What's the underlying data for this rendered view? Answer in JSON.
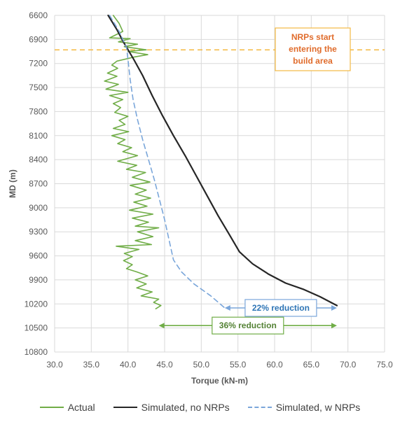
{
  "chart_data": {
    "type": "line",
    "xlabel": "Torque (kN-m)",
    "ylabel": "MD (m)",
    "xlim": [
      30.0,
      75.0
    ],
    "ylim": [
      6600,
      10800
    ],
    "y_inverted": true,
    "grid": true,
    "legend_position": "bottom",
    "x_ticks": [
      "30.0",
      "35.0",
      "40.0",
      "45.0",
      "50.0",
      "55.0",
      "60.0",
      "65.0",
      "70.0",
      "75.0"
    ],
    "y_ticks": [
      "6600",
      "6900",
      "7200",
      "7500",
      "7800",
      "8100",
      "8400",
      "8700",
      "9000",
      "9300",
      "9600",
      "9900",
      "10200",
      "10500",
      "10800"
    ],
    "series": [
      {
        "name": "Actual",
        "color": "#70ad47",
        "dash": "solid",
        "points": [
          [
            38.0,
            6600
          ],
          [
            38.8,
            6700
          ],
          [
            39.3,
            6800
          ],
          [
            37.5,
            6880
          ],
          [
            40.3,
            6890
          ],
          [
            38.7,
            6930
          ],
          [
            41.3,
            6960
          ],
          [
            39.5,
            6990
          ],
          [
            42.5,
            7030
          ],
          [
            40.0,
            7050
          ],
          [
            42.7,
            7090
          ],
          [
            40.8,
            7120
          ],
          [
            38.5,
            7170
          ],
          [
            37.8,
            7220
          ],
          [
            38.6,
            7260
          ],
          [
            37.2,
            7320
          ],
          [
            38.5,
            7360
          ],
          [
            36.8,
            7420
          ],
          [
            38.7,
            7460
          ],
          [
            37.0,
            7520
          ],
          [
            40.0,
            7560
          ],
          [
            37.5,
            7600
          ],
          [
            39.3,
            7650
          ],
          [
            38.0,
            7700
          ],
          [
            39.0,
            7750
          ],
          [
            38.2,
            7810
          ],
          [
            40.0,
            7860
          ],
          [
            38.8,
            7910
          ],
          [
            39.6,
            7960
          ],
          [
            38.0,
            8010
          ],
          [
            40.1,
            8050
          ],
          [
            37.8,
            8100
          ],
          [
            39.6,
            8150
          ],
          [
            38.6,
            8200
          ],
          [
            40.5,
            8250
          ],
          [
            39.3,
            8300
          ],
          [
            41.3,
            8350
          ],
          [
            38.6,
            8420
          ],
          [
            41.2,
            8470
          ],
          [
            39.8,
            8520
          ],
          [
            42.4,
            8560
          ],
          [
            40.6,
            8620
          ],
          [
            43.0,
            8680
          ],
          [
            40.3,
            8720
          ],
          [
            42.5,
            8780
          ],
          [
            41.0,
            8830
          ],
          [
            43.1,
            8880
          ],
          [
            40.8,
            8930
          ],
          [
            42.6,
            8980
          ],
          [
            40.2,
            9030
          ],
          [
            43.4,
            9080
          ],
          [
            40.6,
            9130
          ],
          [
            42.8,
            9180
          ],
          [
            41.0,
            9230
          ],
          [
            44.2,
            9250
          ],
          [
            41.3,
            9300
          ],
          [
            43.4,
            9360
          ],
          [
            41.0,
            9410
          ],
          [
            43.2,
            9460
          ],
          [
            38.4,
            9480
          ],
          [
            41.5,
            9520
          ],
          [
            39.5,
            9570
          ],
          [
            40.6,
            9610
          ],
          [
            39.4,
            9660
          ],
          [
            40.6,
            9710
          ],
          [
            39.8,
            9760
          ],
          [
            41.2,
            9800
          ],
          [
            42.7,
            9850
          ],
          [
            41.0,
            9900
          ],
          [
            42.5,
            9950
          ],
          [
            41.2,
            10000
          ],
          [
            43.3,
            10050
          ],
          [
            41.8,
            10100
          ],
          [
            44.2,
            10140
          ],
          [
            43.5,
            10180
          ],
          [
            44.5,
            10220
          ],
          [
            43.8,
            10260
          ]
        ]
      },
      {
        "name": "Simulated, no NRPs",
        "color": "#262626",
        "dash": "solid",
        "points": [
          [
            37.3,
            6600
          ],
          [
            38.5,
            6780
          ],
          [
            39.5,
            6950
          ],
          [
            40.8,
            7150
          ],
          [
            42.0,
            7350
          ],
          [
            43.3,
            7600
          ],
          [
            44.7,
            7850
          ],
          [
            46.2,
            8100
          ],
          [
            47.8,
            8350
          ],
          [
            49.3,
            8600
          ],
          [
            50.8,
            8850
          ],
          [
            52.3,
            9100
          ],
          [
            53.8,
            9330
          ],
          [
            55.2,
            9550
          ],
          [
            57.0,
            9700
          ],
          [
            59.2,
            9830
          ],
          [
            61.5,
            9940
          ],
          [
            64.0,
            10020
          ],
          [
            66.2,
            10110
          ],
          [
            68.5,
            10220
          ]
        ]
      },
      {
        "name": "Simulated, w NRPs",
        "color": "#7aa6da",
        "dash": "dashed",
        "points": [
          [
            37.5,
            6600
          ],
          [
            38.8,
            6800
          ],
          [
            39.8,
            7000
          ],
          [
            40.0,
            7150
          ],
          [
            40.3,
            7400
          ],
          [
            40.7,
            7650
          ],
          [
            41.3,
            7900
          ],
          [
            42.0,
            8150
          ],
          [
            42.8,
            8400
          ],
          [
            43.6,
            8650
          ],
          [
            44.3,
            8900
          ],
          [
            45.0,
            9150
          ],
          [
            45.6,
            9400
          ],
          [
            46.2,
            9650
          ],
          [
            47.3,
            9800
          ],
          [
            49.0,
            9950
          ],
          [
            51.3,
            10100
          ],
          [
            53.2,
            10250
          ]
        ]
      }
    ],
    "annotations": [
      {
        "text": "NRPs start entering the build area",
        "lines": [
          "NRPs start",
          "entering the",
          "build area"
        ],
        "type": "horizontal-line",
        "y": 7030,
        "color": "#f4b942",
        "text_color": "#e06c2c"
      },
      {
        "text": "22% reduction",
        "type": "double-arrow",
        "x_from": 53.2,
        "x_to": 68.5,
        "y": 10250,
        "color": "#7aa6da",
        "text_color": "#2e75b6"
      },
      {
        "text": "36% reduction",
        "type": "double-arrow",
        "x_from": 44.2,
        "x_to": 68.5,
        "y": 10470,
        "color": "#70ad47",
        "text_color": "#548235"
      }
    ]
  }
}
